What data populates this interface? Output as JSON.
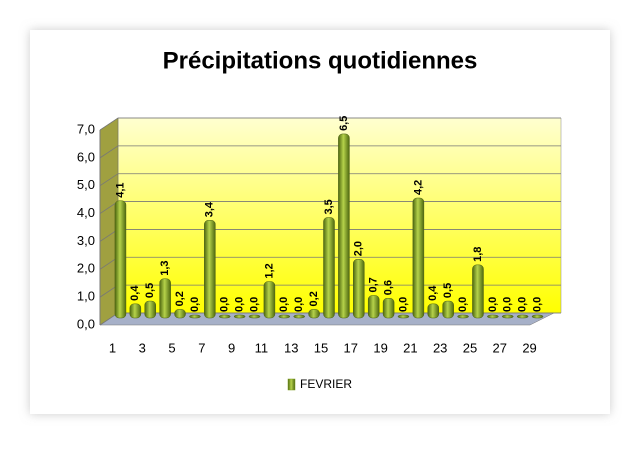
{
  "chart_data": {
    "type": "bar",
    "title": "Précipitations quotidiennes",
    "categories": [
      "1",
      null,
      "3",
      null,
      "5",
      null,
      "7",
      null,
      "9",
      null,
      "11",
      null,
      "13",
      null,
      "15",
      null,
      "17",
      null,
      "19",
      null,
      "21",
      null,
      "23",
      null,
      "25",
      null,
      "27",
      null,
      "29"
    ],
    "series": [
      {
        "name": "FEVRIER",
        "color": "#7a9a1e",
        "values": [
          4.1,
          0.4,
          0.5,
          1.3,
          0.2,
          0.0,
          3.4,
          0.0,
          0.0,
          0.0,
          1.2,
          0.0,
          0.0,
          0.2,
          3.5,
          6.5,
          2.0,
          0.7,
          0.6,
          0.0,
          4.2,
          0.4,
          0.5,
          0.0,
          1.8,
          0.0,
          0.0,
          0.0,
          0.0
        ],
        "value_labels": [
          "4,1",
          "0,4",
          "0,5",
          "1,3",
          "0,2",
          "0,0",
          "3,4",
          "0,0",
          "0,0",
          "0,0",
          "1,2",
          "0,0",
          "0,0",
          "0,2",
          "3,5",
          "6,5",
          "2,0",
          "0,7",
          "0,6",
          "0,0",
          "4,2",
          "0,4",
          "0,5",
          "0,0",
          "1,8",
          "0,0",
          "0,0",
          "0,0",
          "0,0"
        ]
      }
    ],
    "ylim": [
      0,
      7
    ],
    "yticks": [
      {
        "value": 0,
        "label": "0,0"
      },
      {
        "value": 1,
        "label": "1,0"
      },
      {
        "value": 2,
        "label": "2,0"
      },
      {
        "value": 3,
        "label": "3,0"
      },
      {
        "value": 4,
        "label": "4,0"
      },
      {
        "value": 5,
        "label": "5,0"
      },
      {
        "value": 6,
        "label": "6,0"
      },
      {
        "value": 7,
        "label": "7,0"
      }
    ],
    "grid": true,
    "legend": "bottom"
  }
}
